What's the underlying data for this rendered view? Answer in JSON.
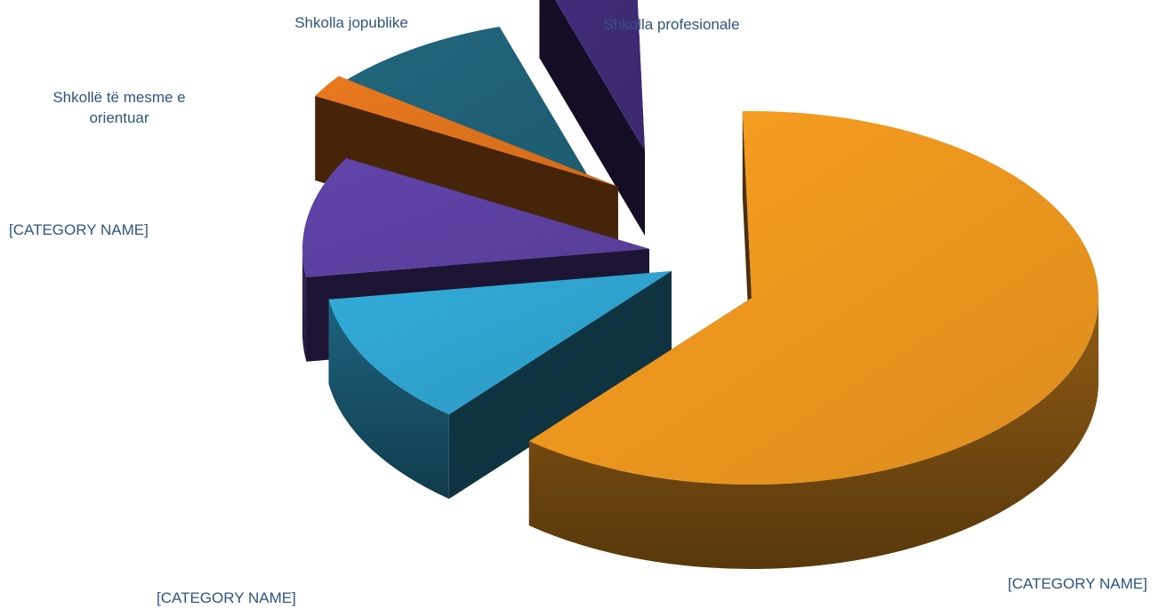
{
  "chart_data": {
    "type": "pie",
    "variant": "3d-exploded",
    "slices": [
      {
        "label": "[CATEGORY NAME]",
        "value": 61.5,
        "color": "#e8931f"
      },
      {
        "label": "[CATEGORY NAME]",
        "value": 11.5,
        "color": "#2e9fcb"
      },
      {
        "label": "[CATEGORY NAME]",
        "value": 10.5,
        "color": "#5a3f9e"
      },
      {
        "label": "Shkollë të mesme e orientuar",
        "value": 2,
        "color": "#d9701c"
      },
      {
        "label": "Shkolla jopublike",
        "value": 10,
        "color": "#1f5f75"
      },
      {
        "label": "Shkolla profesionale",
        "value": 4.5,
        "color": "#3e2a74"
      }
    ]
  }
}
